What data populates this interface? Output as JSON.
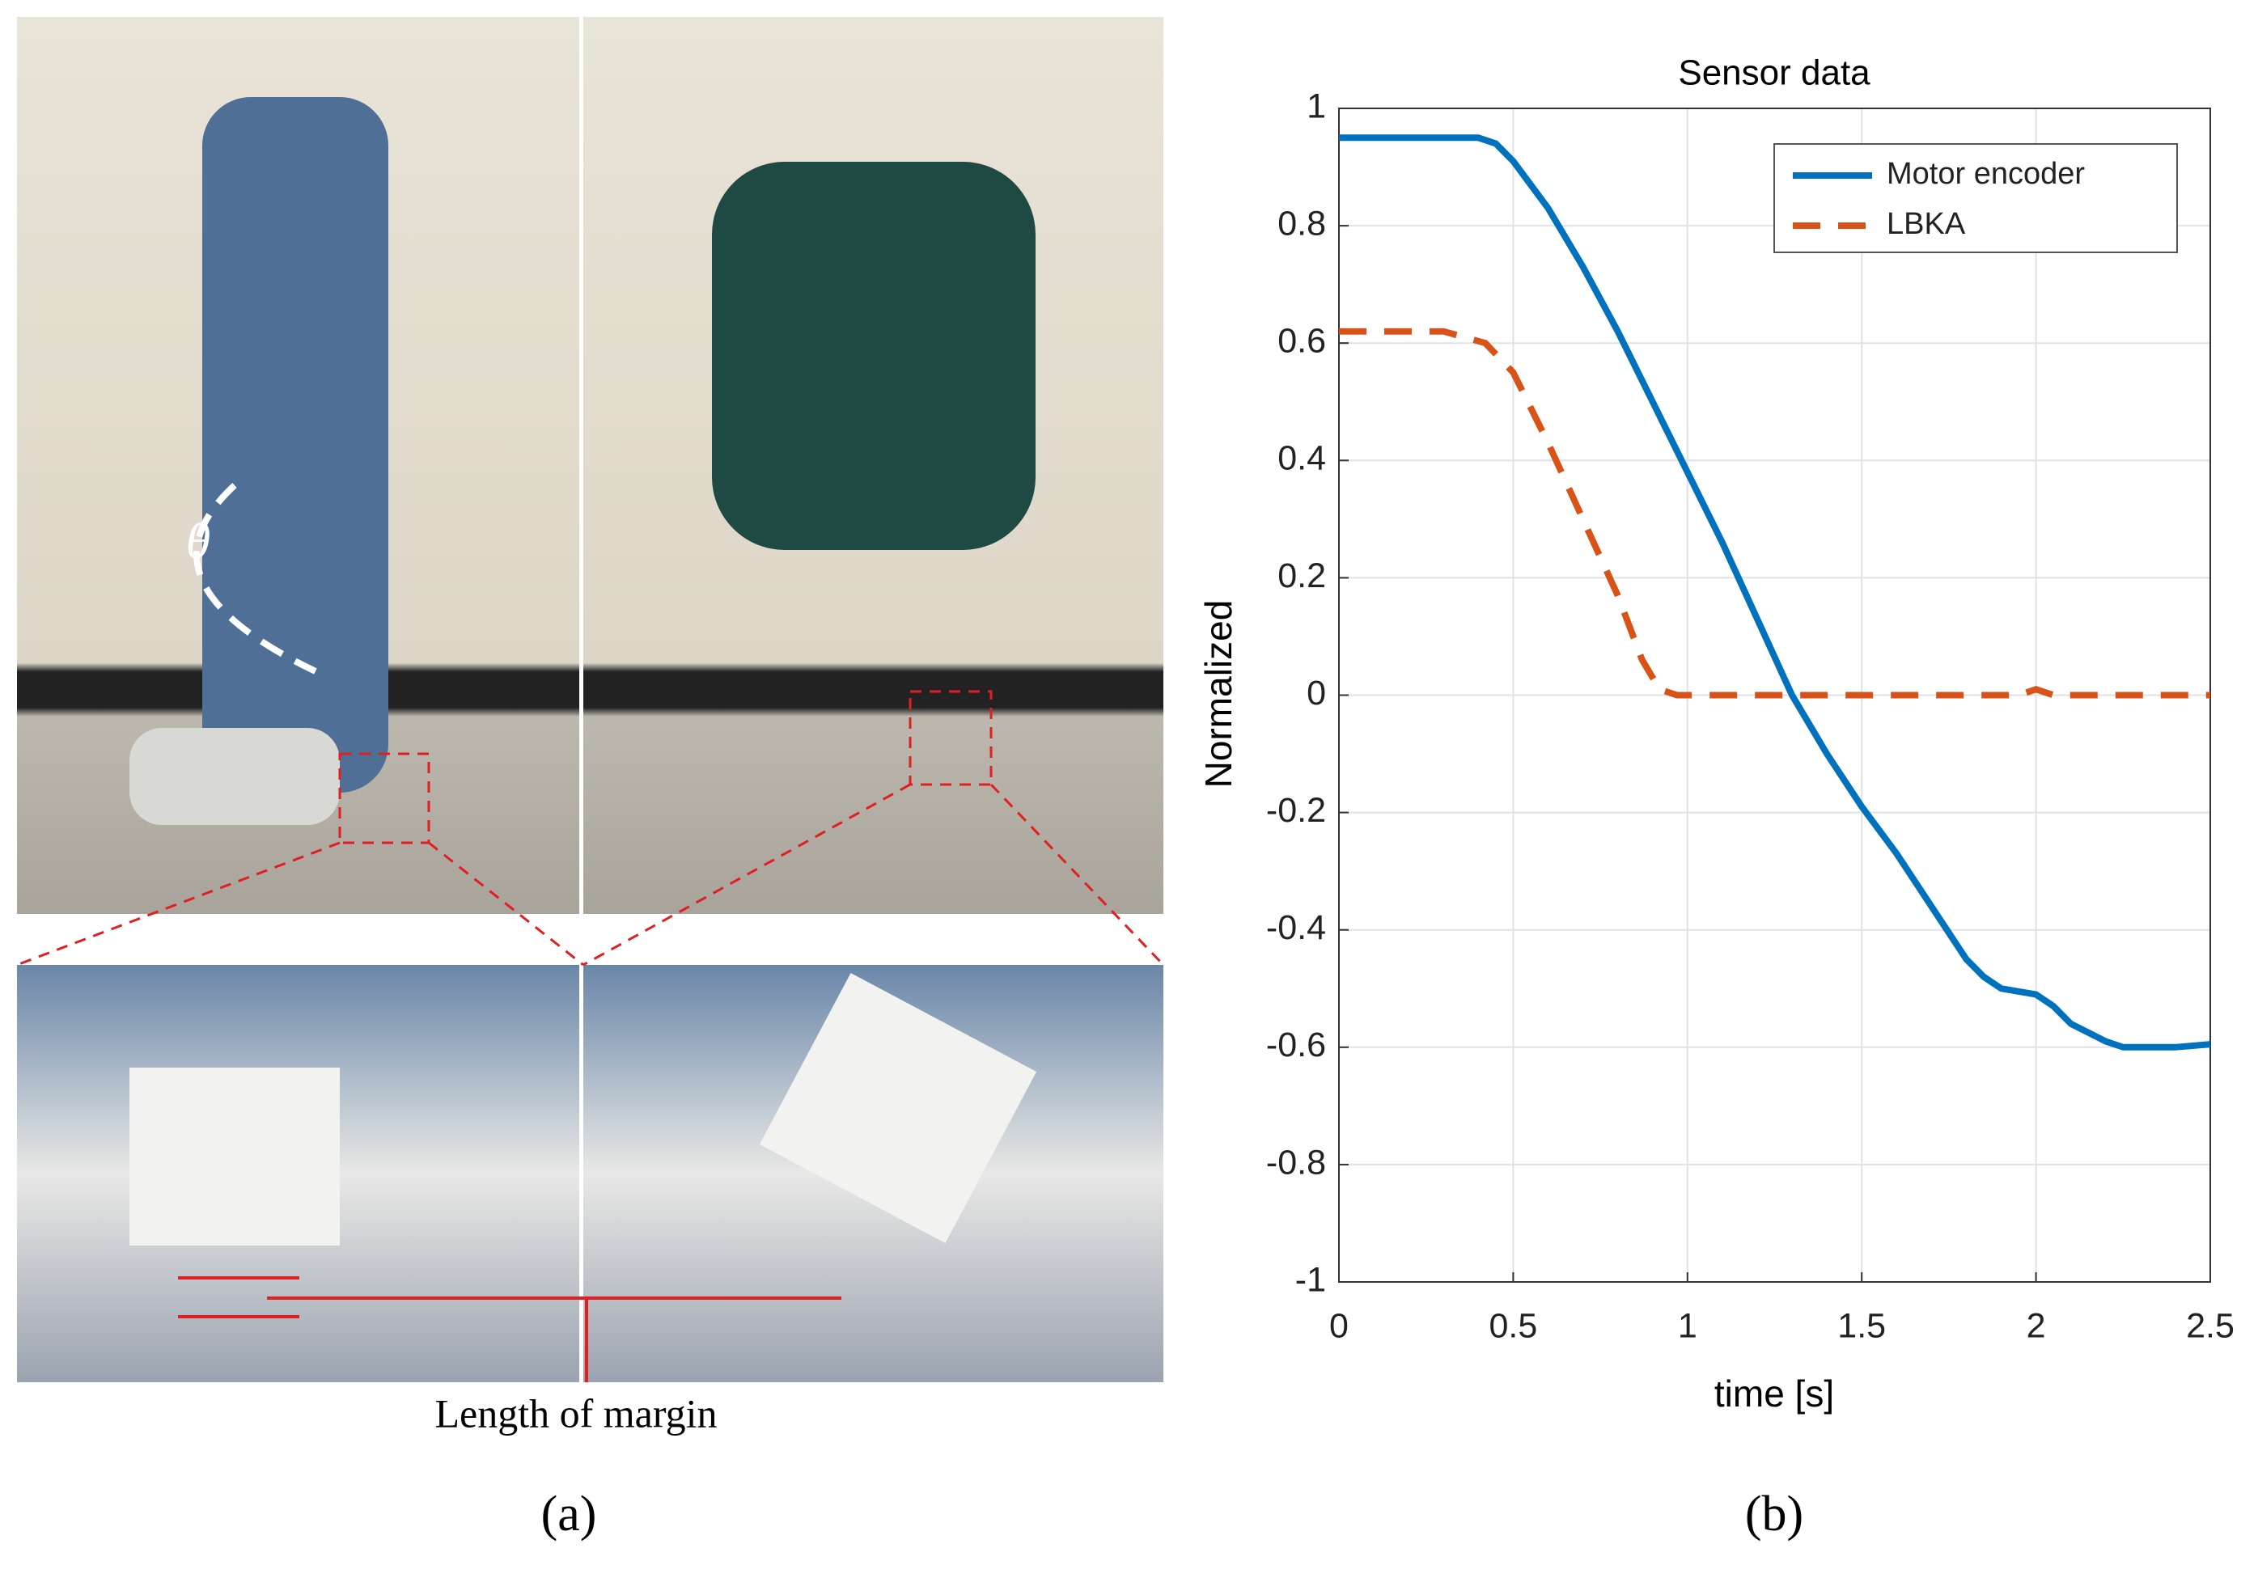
{
  "photo_panel": {
    "angle_symbol": "θ",
    "caption": "Length of margin",
    "label": "(a)"
  },
  "chart_label": "(b)",
  "chart_data": {
    "type": "line",
    "title": "Sensor data",
    "x_label": "time [s]",
    "y_label": "Normalized",
    "xlim": [
      0,
      2.5
    ],
    "ylim": [
      -1,
      1
    ],
    "xticks": [
      0,
      0.5,
      1,
      1.5,
      2,
      2.5
    ],
    "yticks": [
      -1,
      -0.8,
      -0.6,
      -0.4,
      -0.2,
      0,
      0.2,
      0.4,
      0.6,
      0.8,
      1
    ],
    "grid": true,
    "legend": "upper right",
    "series": [
      {
        "name": "Motor encoder",
        "color": "#0072bd",
        "style": "solid",
        "x": [
          0,
          0.4,
          0.45,
          0.5,
          0.6,
          0.7,
          0.8,
          0.9,
          1.0,
          1.1,
          1.2,
          1.3,
          1.4,
          1.5,
          1.6,
          1.7,
          1.8,
          1.85,
          1.9,
          2.0,
          2.05,
          2.1,
          2.2,
          2.25,
          2.4,
          2.5
        ],
        "values": [
          0.95,
          0.95,
          0.94,
          0.91,
          0.83,
          0.73,
          0.62,
          0.5,
          0.38,
          0.26,
          0.13,
          0.0,
          -0.1,
          -0.19,
          -0.27,
          -0.36,
          -0.45,
          -0.48,
          -0.5,
          -0.51,
          -0.53,
          -0.56,
          -0.59,
          -0.6,
          -0.6,
          -0.595
        ]
      },
      {
        "name": "LBKA",
        "color": "#d95319",
        "style": "dashed",
        "x": [
          0,
          0.3,
          0.42,
          0.5,
          0.6,
          0.7,
          0.8,
          0.87,
          0.92,
          0.97,
          1.95,
          2.0,
          2.05,
          2.5
        ],
        "values": [
          0.62,
          0.62,
          0.6,
          0.55,
          0.43,
          0.3,
          0.17,
          0.06,
          0.01,
          0,
          0,
          0.01,
          0,
          0
        ]
      }
    ]
  }
}
